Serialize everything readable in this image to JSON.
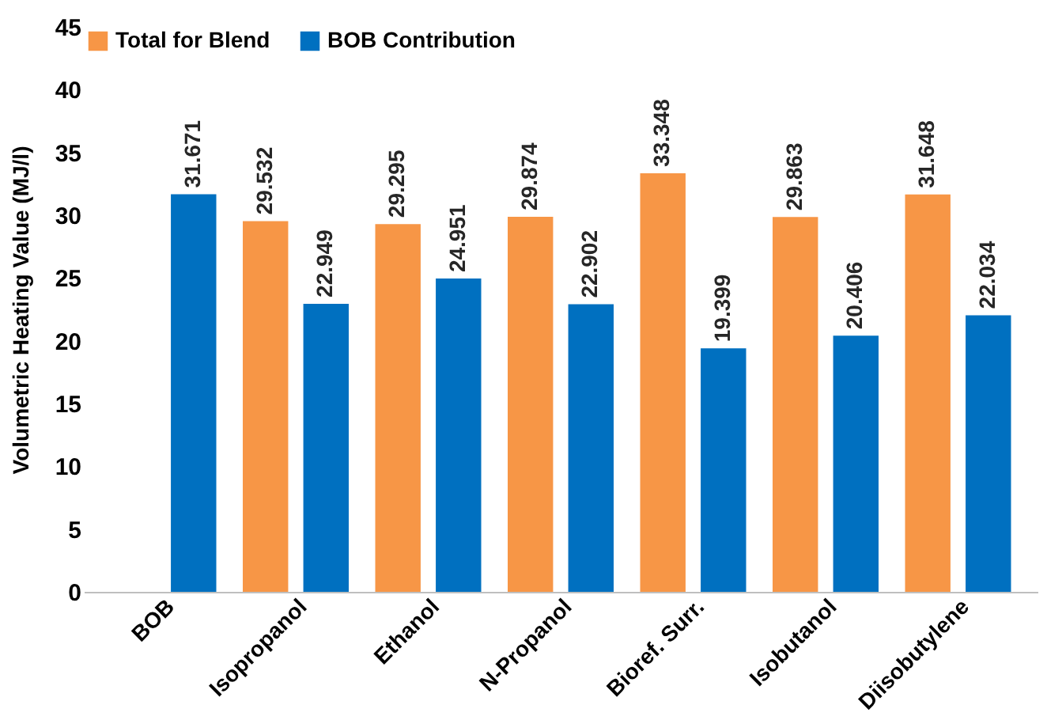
{
  "chart_data": {
    "type": "bar",
    "ylabel": "Volumetric Heating Value (MJ/l)",
    "categories": [
      "BOB",
      "Isopropanol",
      "Ethanol",
      "N-Propanol",
      "Bioref. Surr.",
      "Isobutanol",
      "Diisobutylene"
    ],
    "series": [
      {
        "name": "Total for Blend",
        "color": "#f79646",
        "values": [
          null,
          29.532,
          29.295,
          29.874,
          33.348,
          29.863,
          31.648
        ]
      },
      {
        "name": "BOB Contribution",
        "color": "#0070c0",
        "values": [
          31.671,
          22.949,
          24.951,
          22.902,
          19.399,
          20.406,
          22.034
        ]
      }
    ],
    "ylim": [
      0,
      45
    ],
    "yticks": [
      0,
      5,
      10,
      15,
      20,
      25,
      30,
      35,
      40,
      45
    ],
    "grid": false,
    "legend": "top left",
    "data_labels": true
  }
}
